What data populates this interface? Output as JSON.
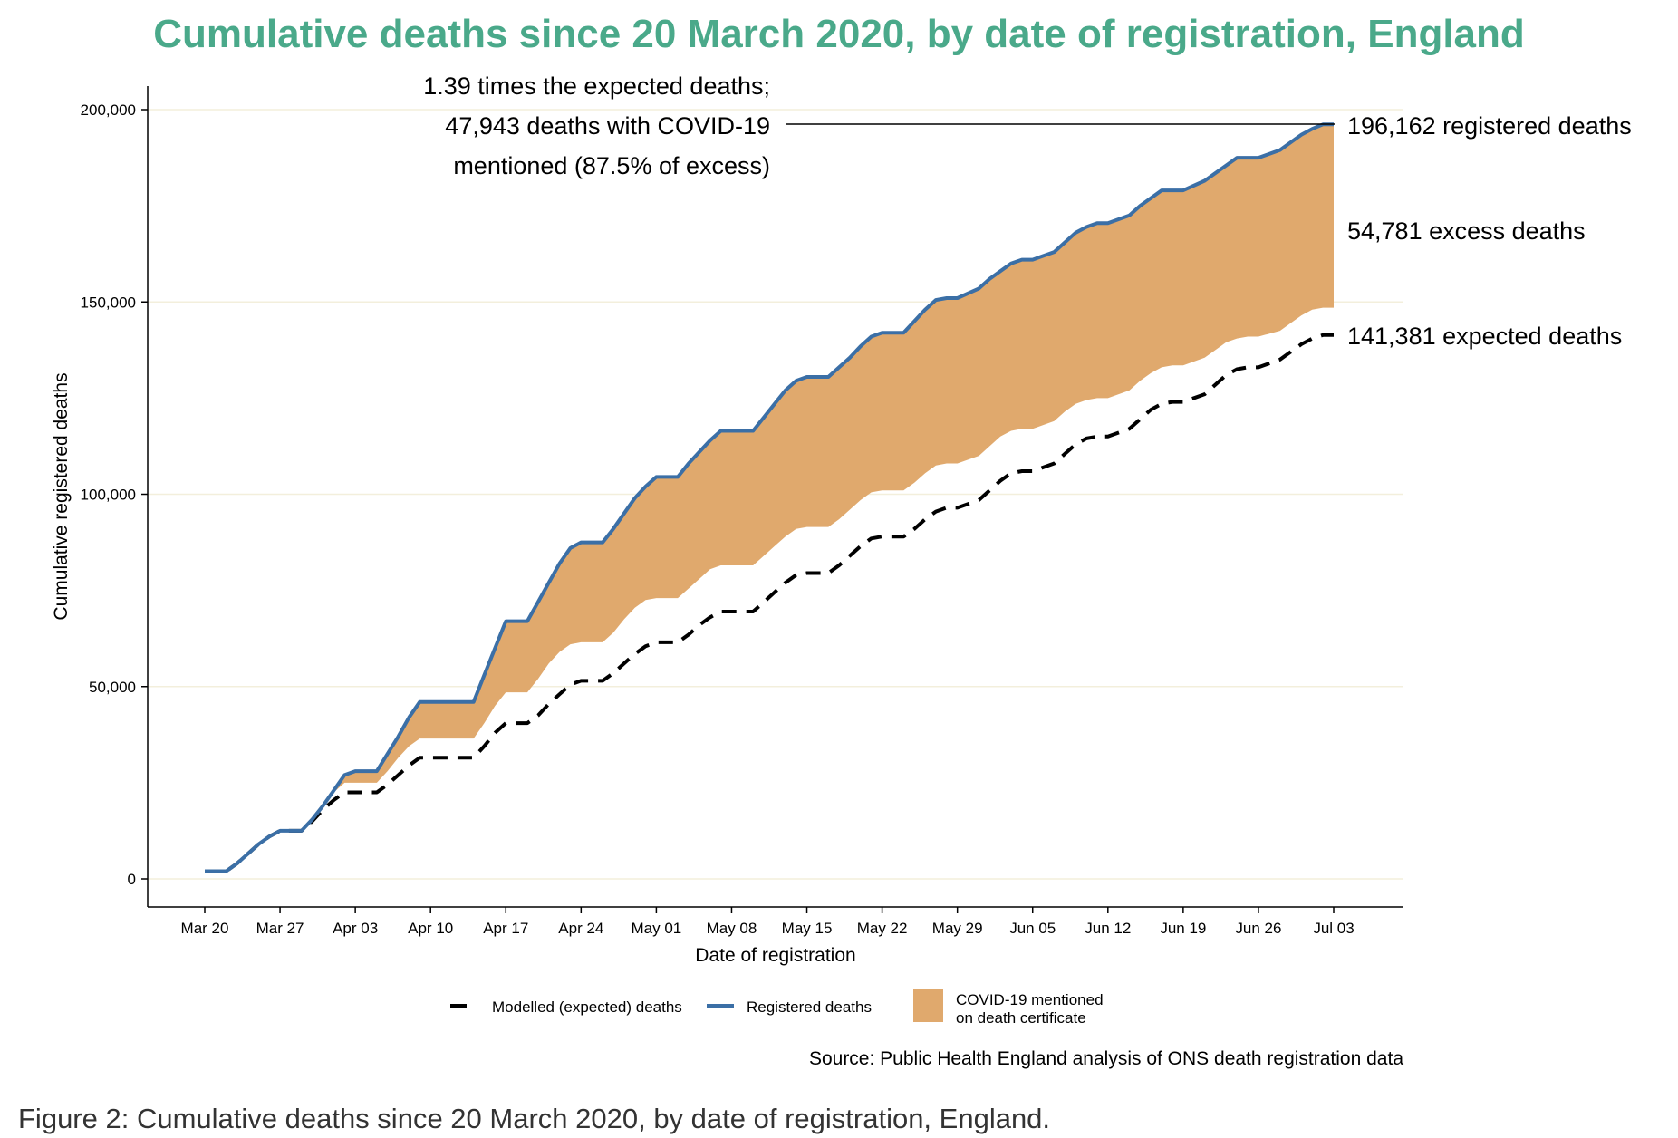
{
  "chart_data": {
    "type": "area",
    "title": "Cumulative deaths since 20 March 2020, by date of registration, England",
    "xlabel": "Date of registration",
    "ylabel": "Cumulative registered deaths",
    "ylim": [
      0,
      200000
    ],
    "yticks": [
      0,
      50000,
      100000,
      150000,
      200000
    ],
    "ytick_labels": [
      "0",
      "50,000",
      "100,000",
      "150,000",
      "200,000"
    ],
    "xticks": [
      "Mar 20",
      "Mar 27",
      "Apr 03",
      "Apr 10",
      "Apr 17",
      "Apr 24",
      "May 01",
      "May 08",
      "May 15",
      "May 22",
      "May 29",
      "Jun 05",
      "Jun 12",
      "Jun 19",
      "Jun 26",
      "Jul 03"
    ],
    "grid": "horizontal",
    "x_dates": [
      "Mar 20",
      "Mar 22",
      "Mar 23",
      "Mar 24",
      "Mar 25",
      "Mar 26",
      "Mar 27",
      "Mar 29",
      "Mar 30",
      "Mar 31",
      "Apr 01",
      "Apr 02",
      "Apr 03",
      "Apr 05",
      "Apr 06",
      "Apr 07",
      "Apr 08",
      "Apr 09",
      "Apr 10",
      "Apr 14",
      "Apr 15",
      "Apr 16",
      "Apr 17",
      "Apr 19",
      "Apr 20",
      "Apr 21",
      "Apr 22",
      "Apr 23",
      "Apr 24",
      "Apr 26",
      "Apr 27",
      "Apr 28",
      "Apr 29",
      "Apr 30",
      "May 01",
      "May 03",
      "May 04",
      "May 05",
      "May 06",
      "May 07",
      "May 08",
      "May 10",
      "May 11",
      "May 12",
      "May 13",
      "May 14",
      "May 15",
      "May 17",
      "May 18",
      "May 19",
      "May 20",
      "May 21",
      "May 22",
      "May 24",
      "May 25",
      "May 26",
      "May 27",
      "May 28",
      "May 29",
      "May 31",
      "Jun 01",
      "Jun 02",
      "Jun 03",
      "Jun 04",
      "Jun 05",
      "Jun 07",
      "Jun 08",
      "Jun 09",
      "Jun 10",
      "Jun 11",
      "Jun 12",
      "Jun 14",
      "Jun 15",
      "Jun 16",
      "Jun 17",
      "Jun 18",
      "Jun 19",
      "Jun 21",
      "Jun 22",
      "Jun 23",
      "Jun 24",
      "Jun 25",
      "Jun 26",
      "Jun 28",
      "Jun 29",
      "Jun 30",
      "Jul 01",
      "Jul 02",
      "Jul 03"
    ],
    "series": [
      {
        "name": "Registered deaths",
        "color": "#3b6fa6",
        "values": [
          2000,
          2000,
          4000,
          6500,
          9000,
          11000,
          12500,
          12500,
          15500,
          19000,
          23000,
          27000,
          28000,
          28000,
          32500,
          37000,
          42000,
          46000,
          46000,
          46000,
          53000,
          60000,
          67000,
          67000,
          72000,
          77000,
          82000,
          86000,
          87500,
          87500,
          91000,
          95000,
          99000,
          102000,
          104500,
          104500,
          108000,
          111000,
          114000,
          116500,
          116500,
          116500,
          120000,
          123500,
          127000,
          129500,
          130500,
          130500,
          133000,
          135500,
          138500,
          141000,
          142000,
          142000,
          145000,
          148000,
          150500,
          151000,
          151000,
          153500,
          156000,
          158000,
          160000,
          161000,
          161000,
          163000,
          165500,
          168000,
          169500,
          170500,
          170500,
          172500,
          175000,
          177000,
          179000,
          179000,
          179000,
          181500,
          183500,
          185500,
          187500,
          187500,
          187500,
          189500,
          191500,
          193500,
          195000,
          196162,
          196162
        ]
      },
      {
        "name": "Modelled (expected) deaths",
        "color": "#000000",
        "values": [
          2000,
          2000,
          4000,
          6500,
          9000,
          11000,
          12500,
          12500,
          15000,
          18000,
          20500,
          22500,
          22500,
          22500,
          24500,
          27000,
          29500,
          31500,
          31500,
          31500,
          34500,
          38000,
          40500,
          40500,
          42500,
          45500,
          48000,
          50500,
          51500,
          51500,
          53500,
          56000,
          58500,
          60500,
          61500,
          61500,
          63500,
          66000,
          68000,
          69500,
          69500,
          69500,
          72000,
          74500,
          77000,
          79000,
          79500,
          79500,
          81500,
          84000,
          86500,
          88500,
          89000,
          89000,
          91000,
          93500,
          95500,
          96500,
          96500,
          98500,
          101000,
          103500,
          105500,
          106000,
          106000,
          108000,
          110500,
          113000,
          114500,
          115000,
          115000,
          117000,
          119500,
          122000,
          123500,
          124000,
          124000,
          126000,
          128500,
          131000,
          132500,
          133000,
          133000,
          135000,
          137000,
          139000,
          140500,
          141381,
          141381
        ]
      },
      {
        "name": "COVID-19 mentioned on death certificate",
        "color": "#e0a96d",
        "values": [
          2000,
          2000,
          4000,
          6500,
          9000,
          11000,
          12500,
          12500,
          15500,
          19000,
          22500,
          25000,
          25000,
          25000,
          28000,
          31500,
          34500,
          36500,
          36500,
          36500,
          40500,
          45000,
          48500,
          48500,
          52000,
          56000,
          59000,
          61000,
          61500,
          61500,
          64000,
          67500,
          70500,
          72500,
          73000,
          73000,
          75500,
          78000,
          80500,
          81500,
          81500,
          81500,
          84000,
          86500,
          89000,
          91000,
          91500,
          91500,
          93500,
          96000,
          98500,
          100500,
          101000,
          101000,
          103000,
          105500,
          107500,
          108000,
          108000,
          110000,
          112500,
          115000,
          116500,
          117000,
          117000,
          119000,
          121500,
          123500,
          124500,
          125000,
          125000,
          127000,
          129500,
          131500,
          133000,
          133500,
          133500,
          135500,
          137500,
          139500,
          140500,
          141000,
          141000,
          142500,
          144500,
          146500,
          148000,
          148500,
          148500
        ]
      }
    ],
    "annotations": {
      "excess_line1": "1.39 times the expected deaths;",
      "excess_line2": "47,943 deaths with COVID-19",
      "excess_line3": "mentioned (87.5% of excess)",
      "registered": "196,162 registered deaths",
      "excess": "54,781 excess deaths",
      "expected": "141,381 expected deaths"
    },
    "legend": {
      "position": "bottom",
      "modelled": "Modelled (expected) deaths",
      "registered": "Registered deaths",
      "covid_line1": "COVID-19 mentioned",
      "covid_line2": "on death certificate"
    },
    "source": "Source: Public Health England analysis of ONS death registration data"
  },
  "caption": "Figure 2: Cumulative deaths since 20 March 2020, by date of registration, England."
}
